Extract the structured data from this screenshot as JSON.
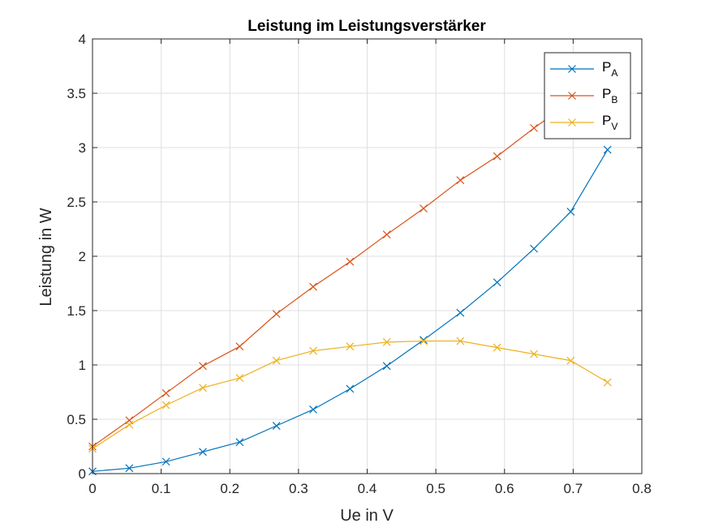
{
  "chart_data": {
    "type": "line",
    "title": "Leistung im Leistungsverstärker",
    "xlabel": "Ue in V",
    "ylabel": "Leistung in W",
    "xlim": [
      0,
      0.8
    ],
    "ylim": [
      0,
      4
    ],
    "xticks": [
      "0",
      "0.1",
      "0.2",
      "0.3",
      "0.4",
      "0.5",
      "0.6",
      "0.7",
      "0.8"
    ],
    "yticks": [
      "0",
      "0.5",
      "1",
      "1.5",
      "2",
      "2.5",
      "3",
      "3.5",
      "4"
    ],
    "grid": true,
    "legend_position": "top-right",
    "x": [
      0,
      0.0536,
      0.1071,
      0.1607,
      0.2143,
      0.2679,
      0.3214,
      0.375,
      0.4286,
      0.4821,
      0.5357,
      0.5893,
      0.6429,
      0.6964,
      0.75
    ],
    "series": [
      {
        "name": "P",
        "subscript": "A",
        "color": "#0072BD",
        "marker": "x",
        "values": [
          0.02,
          0.05,
          0.11,
          0.2,
          0.29,
          0.44,
          0.59,
          0.78,
          0.99,
          1.23,
          1.48,
          1.76,
          2.07,
          2.41,
          2.98
        ]
      },
      {
        "name": "P",
        "subscript": "B",
        "color": "#D95319",
        "marker": "x",
        "values": [
          0.25,
          0.49,
          0.74,
          0.99,
          1.17,
          1.47,
          1.72,
          1.95,
          2.2,
          2.44,
          2.7,
          2.92,
          3.18,
          3.42,
          3.72
        ]
      },
      {
        "name": "P",
        "subscript": "V",
        "color": "#EDB120",
        "marker": "x",
        "values": [
          0.23,
          0.45,
          0.63,
          0.79,
          0.88,
          1.04,
          1.13,
          1.17,
          1.21,
          1.22,
          1.22,
          1.16,
          1.1,
          1.04,
          0.84
        ]
      }
    ]
  }
}
